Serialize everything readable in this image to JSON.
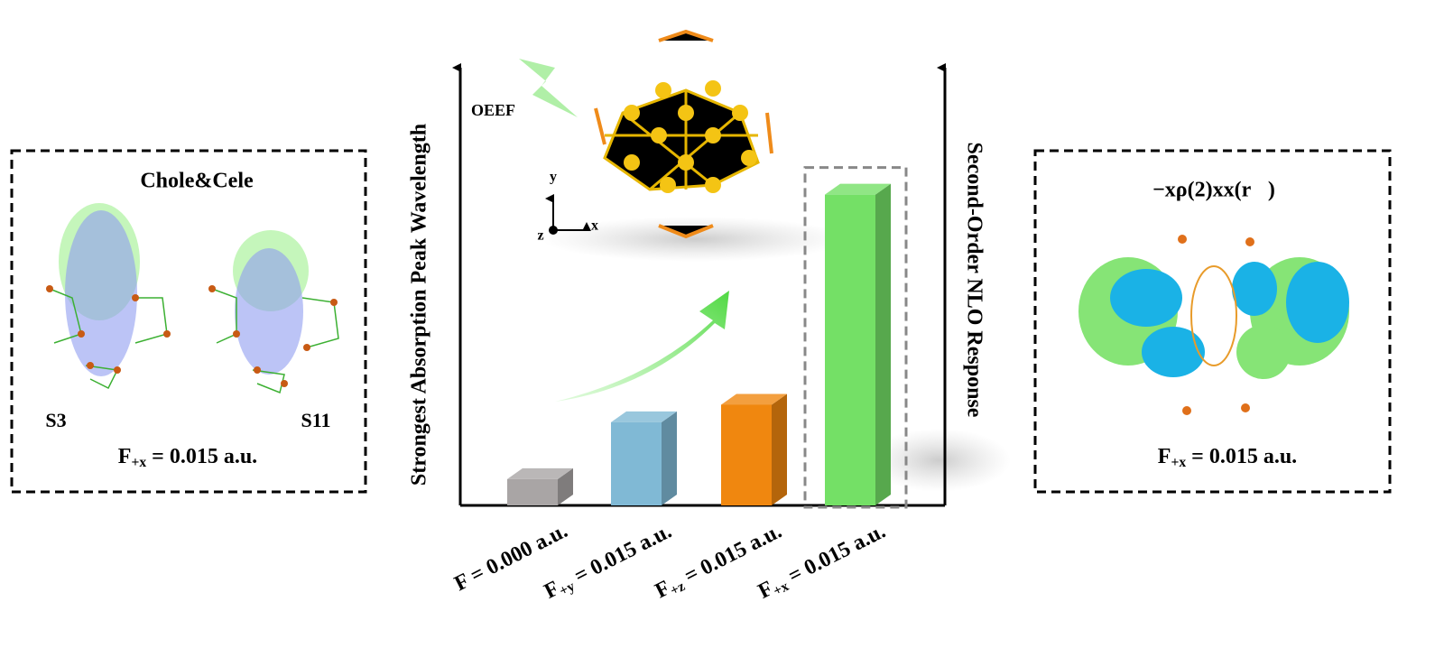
{
  "chart_data": {
    "type": "bar",
    "y_label": "Strongest Absorption Peak Wavelength",
    "y2_label": "Second-Order NLO Response",
    "annotation": "OEEF",
    "axes_labels": [
      "x",
      "y",
      "z"
    ],
    "categories": [
      "F = 0.000 a.u.",
      "F+y = 0.015 a.u.",
      "F+z = 0.015 a.u.",
      "F+x = 0.015 a.u."
    ],
    "values": [
      6,
      19,
      23,
      71
    ],
    "colors": [
      "#a9a5a5",
      "#80b9d5",
      "#f0870f",
      "#74e066"
    ],
    "ylim": [
      0,
      100
    ]
  },
  "left_panel": {
    "title": "Chole&Cele",
    "labels": [
      "S3",
      "S11"
    ],
    "caption": "F+x = 0.015 a.u."
  },
  "right_panel": {
    "title": "−xρ(2)xx(r⃗)",
    "caption": "F+x = 0.015 a.u."
  }
}
